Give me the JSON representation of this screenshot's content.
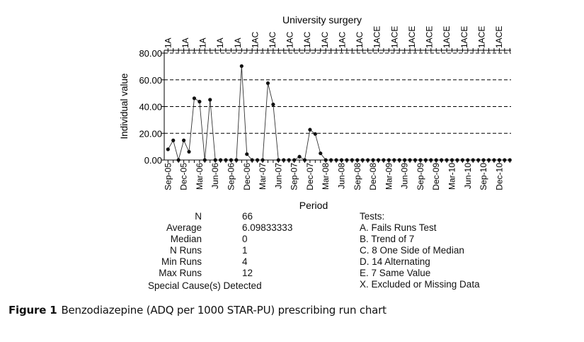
{
  "chart_data": {
    "type": "line",
    "title": "University surgery",
    "xlabel": "Period",
    "ylabel": "Individual value",
    "ylim": [
      0,
      80
    ],
    "yticks": [
      "0.00",
      "20.00",
      "40.00",
      "60.00",
      "80.00"
    ],
    "ytick_values": [
      0,
      20,
      40,
      60,
      80
    ],
    "grid": "horizontal dashed",
    "xtick_labels": [
      "Sep-05",
      "Dec-05",
      "Mar-06",
      "Jun-06",
      "Sep-06",
      "Dec-06",
      "Mar-07",
      "Jun-07",
      "Sep-07",
      "Dec-07",
      "Mar-08",
      "Jun-08",
      "Sep-08",
      "Dec-08",
      "Mar-09",
      "Jun-09",
      "Sep-09",
      "Dec-09",
      "Mar-10",
      "Jun-10",
      "Sep-10",
      "Dec-10"
    ],
    "top_annotations": [
      "1A",
      "1A",
      "1A",
      "1A",
      "1A",
      "1AC",
      "1AC",
      "1AC",
      "1AC",
      "1AC",
      "1AC",
      "1AC",
      "1ACE",
      "1ACE",
      "1ACE",
      "1ACE",
      "1ACE",
      "1ACE",
      "1ACE",
      "1ACE"
    ],
    "series": [
      {
        "name": "Individual value",
        "values": [
          8,
          14.7,
          0,
          14.7,
          6.2,
          46.2,
          43.7,
          0,
          45.1,
          0,
          0,
          0,
          0,
          0,
          70.3,
          4.4,
          0,
          0,
          0,
          57.5,
          41.6,
          0,
          0,
          0,
          0,
          2.5,
          0,
          22.7,
          19.5,
          5,
          0,
          0,
          0,
          0,
          0,
          0,
          0,
          0,
          0,
          0,
          0,
          0,
          0,
          0,
          0,
          0,
          0,
          0,
          0,
          0,
          0,
          0,
          0,
          0,
          0,
          0,
          0,
          0,
          0,
          0,
          0,
          0,
          0,
          0,
          0,
          0
        ]
      }
    ]
  },
  "stats": [
    {
      "label": "N",
      "value": "66"
    },
    {
      "label": "Average",
      "value": "6.09833333"
    },
    {
      "label": "Median",
      "value": "0"
    },
    {
      "label": "N Runs",
      "value": "1"
    },
    {
      "label": "Min Runs",
      "value": "4"
    },
    {
      "label": "Max Runs",
      "value": "12"
    }
  ],
  "special_cause": "Special Cause(s) Detected",
  "tests": [
    "Tests:",
    "A. Fails Runs Test",
    "B. Trend of 7",
    "C. 8 One Side of Median",
    "D. 14 Alternating",
    "E. 7 Same Value",
    "X. Excluded or Missing Data"
  ],
  "caption": {
    "label": "Figure 1",
    "text": "Benzodiazepine (ADQ per 1000 STAR-PU) prescribing run chart"
  }
}
